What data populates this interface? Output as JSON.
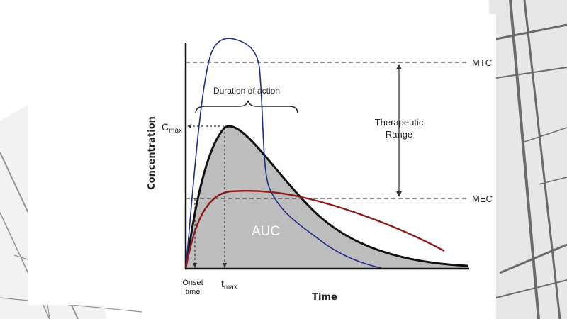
{
  "slide": {
    "accent_colors": {
      "curve_main": "#111111",
      "auc_fill": "#bdbdbd",
      "curve_blue": "#1f2a8a",
      "curve_red": "#8b1a1a",
      "background_decor": "#3a3a3a"
    }
  },
  "diagram": {
    "y_axis_label": "Concentration",
    "x_axis_label": "Time",
    "mtc_label": "MTC",
    "mec_label": "MEC",
    "therapeutic_range_line1": "Therapeutic",
    "therapeutic_range_line2": "Range",
    "duration_label": "Duration of action",
    "auc_label": "AUC",
    "cmax_main": "C",
    "cmax_sub": "max",
    "tmax_main": "t",
    "tmax_sub": "max",
    "onset_line1": "Onset",
    "onset_line2": "time"
  }
}
